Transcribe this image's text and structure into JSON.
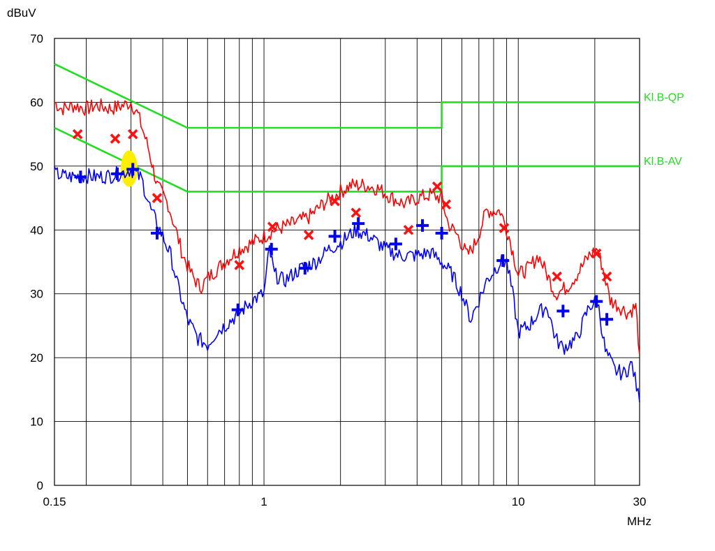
{
  "chart_data": {
    "type": "line",
    "ylabel": "dBuV",
    "xlabel": "MHz",
    "x_scale": "log",
    "xlim": [
      0.15,
      30
    ],
    "ylim": [
      0,
      70
    ],
    "grid": true,
    "y_ticks": [
      0,
      10,
      20,
      30,
      40,
      50,
      60,
      70
    ],
    "x_tick_labels": [
      {
        "value": 0.15,
        "label": "0.15"
      },
      {
        "value": 1,
        "label": "1"
      },
      {
        "value": 10,
        "label": "10"
      },
      {
        "value": 30,
        "label": "30"
      }
    ],
    "x_grid": [
      0.2,
      0.3,
      0.4,
      0.5,
      0.6,
      0.7,
      0.8,
      0.9,
      1,
      2,
      3,
      4,
      5,
      6,
      7,
      8,
      9,
      10,
      20
    ],
    "colors": {
      "qp_trace": "#ff0000",
      "av_trace": "#0000ff",
      "limit": "#22dd22",
      "qp_marker": "#ff1010",
      "av_marker": "#0000ee",
      "highlight": "#ffee00",
      "grid": "#000000"
    },
    "limits": [
      {
        "name": "Kl.B-QP",
        "points": [
          [
            0.15,
            66
          ],
          [
            0.5,
            56
          ],
          [
            5,
            56
          ],
          [
            5,
            60
          ],
          [
            30,
            60
          ]
        ]
      },
      {
        "name": "Kl.B-AV",
        "points": [
          [
            0.15,
            56
          ],
          [
            0.5,
            46
          ],
          [
            5,
            46
          ],
          [
            5,
            50
          ],
          [
            30,
            50
          ]
        ]
      }
    ],
    "series": [
      {
        "role": "qp_trace",
        "points": [
          [
            0.15,
            60
          ],
          [
            0.16,
            59
          ],
          [
            0.18,
            59.5
          ],
          [
            0.2,
            59
          ],
          [
            0.22,
            59.5
          ],
          [
            0.25,
            59
          ],
          [
            0.28,
            59.5
          ],
          [
            0.3,
            60
          ],
          [
            0.32,
            58
          ],
          [
            0.35,
            53
          ],
          [
            0.38,
            47
          ],
          [
            0.42,
            44
          ],
          [
            0.45,
            40
          ],
          [
            0.48,
            36
          ],
          [
            0.52,
            33
          ],
          [
            0.56,
            31
          ],
          [
            0.62,
            33
          ],
          [
            0.7,
            35
          ],
          [
            0.8,
            37
          ],
          [
            0.9,
            38
          ],
          [
            1.0,
            39
          ],
          [
            1.1,
            40
          ],
          [
            1.3,
            41
          ],
          [
            1.5,
            42
          ],
          [
            1.7,
            44
          ],
          [
            2.0,
            46
          ],
          [
            2.2,
            47
          ],
          [
            2.5,
            47
          ],
          [
            2.8,
            46.5
          ],
          [
            3.2,
            45
          ],
          [
            3.6,
            44
          ],
          [
            4.0,
            45
          ],
          [
            4.5,
            45.5
          ],
          [
            5.0,
            45
          ],
          [
            5.3,
            41
          ],
          [
            5.8,
            39
          ],
          [
            6.3,
            36
          ],
          [
            6.8,
            38
          ],
          [
            7.5,
            43
          ],
          [
            8.5,
            43
          ],
          [
            9.2,
            39
          ],
          [
            10,
            33
          ],
          [
            11,
            34
          ],
          [
            12,
            36
          ],
          [
            13,
            33
          ],
          [
            14,
            30
          ],
          [
            15.5,
            31
          ],
          [
            17,
            33
          ],
          [
            19,
            36
          ],
          [
            20.5,
            37
          ],
          [
            21.5,
            34
          ],
          [
            23,
            29
          ],
          [
            25,
            28
          ],
          [
            27,
            27
          ],
          [
            29,
            28
          ],
          [
            30,
            20.5
          ]
        ]
      },
      {
        "role": "av_trace",
        "points": [
          [
            0.15,
            48.8
          ],
          [
            0.17,
            48.3
          ],
          [
            0.2,
            48.5
          ],
          [
            0.22,
            48.3
          ],
          [
            0.25,
            48.5
          ],
          [
            0.28,
            49
          ],
          [
            0.3,
            49.5
          ],
          [
            0.33,
            48
          ],
          [
            0.36,
            43
          ],
          [
            0.4,
            39
          ],
          [
            0.43,
            36
          ],
          [
            0.46,
            31
          ],
          [
            0.5,
            26
          ],
          [
            0.55,
            23
          ],
          [
            0.6,
            22
          ],
          [
            0.65,
            24
          ],
          [
            0.7,
            25
          ],
          [
            0.8,
            27
          ],
          [
            0.9,
            29
          ],
          [
            1.0,
            30
          ],
          [
            1.05,
            37
          ],
          [
            1.1,
            33
          ],
          [
            1.2,
            32
          ],
          [
            1.4,
            34
          ],
          [
            1.6,
            35
          ],
          [
            1.8,
            37
          ],
          [
            2.0,
            38
          ],
          [
            2.3,
            40
          ],
          [
            2.6,
            39
          ],
          [
            3.0,
            37
          ],
          [
            3.4,
            36
          ],
          [
            4.0,
            36
          ],
          [
            4.5,
            36.5
          ],
          [
            5.0,
            35
          ],
          [
            5.5,
            33
          ],
          [
            6.0,
            30
          ],
          [
            6.5,
            26
          ],
          [
            7.0,
            29
          ],
          [
            7.5,
            32
          ],
          [
            8.5,
            35
          ],
          [
            9.0,
            35
          ],
          [
            9.5,
            30
          ],
          [
            10,
            24
          ],
          [
            11,
            25
          ],
          [
            12,
            27
          ],
          [
            13,
            28
          ],
          [
            14,
            23
          ],
          [
            15,
            21.5
          ],
          [
            17,
            23
          ],
          [
            19,
            28
          ],
          [
            20.5,
            29
          ],
          [
            22,
            21
          ],
          [
            24,
            18
          ],
          [
            26,
            17.5
          ],
          [
            28,
            19
          ],
          [
            30,
            13
          ]
        ]
      }
    ],
    "markers_qp": [
      [
        0.185,
        55
      ],
      [
        0.26,
        54.3
      ],
      [
        0.305,
        55
      ],
      [
        0.38,
        45
      ],
      [
        0.8,
        34.5
      ],
      [
        1.08,
        40.5
      ],
      [
        1.5,
        39.2
      ],
      [
        1.9,
        44.5
      ],
      [
        2.3,
        42.7
      ],
      [
        3.7,
        40
      ],
      [
        4.8,
        46.8
      ],
      [
        5.2,
        44
      ],
      [
        8.8,
        40.3
      ],
      [
        14.2,
        32.7
      ],
      [
        20.3,
        36.3
      ],
      [
        22.3,
        32.7
      ]
    ],
    "markers_av": [
      [
        0.19,
        48.3
      ],
      [
        0.265,
        48.8
      ],
      [
        0.305,
        49.5
      ],
      [
        0.38,
        39.5
      ],
      [
        0.79,
        27.5
      ],
      [
        1.07,
        37
      ],
      [
        1.45,
        34
      ],
      [
        1.9,
        39
      ],
      [
        2.35,
        41
      ],
      [
        3.3,
        37.8
      ],
      [
        4.2,
        40.7
      ],
      [
        5.0,
        39.5
      ],
      [
        8.7,
        35.2
      ],
      [
        15.0,
        27.3
      ],
      [
        20.3,
        28.8
      ],
      [
        22.3,
        26
      ]
    ],
    "highlight_point": [
      0.295,
      49.5
    ]
  }
}
